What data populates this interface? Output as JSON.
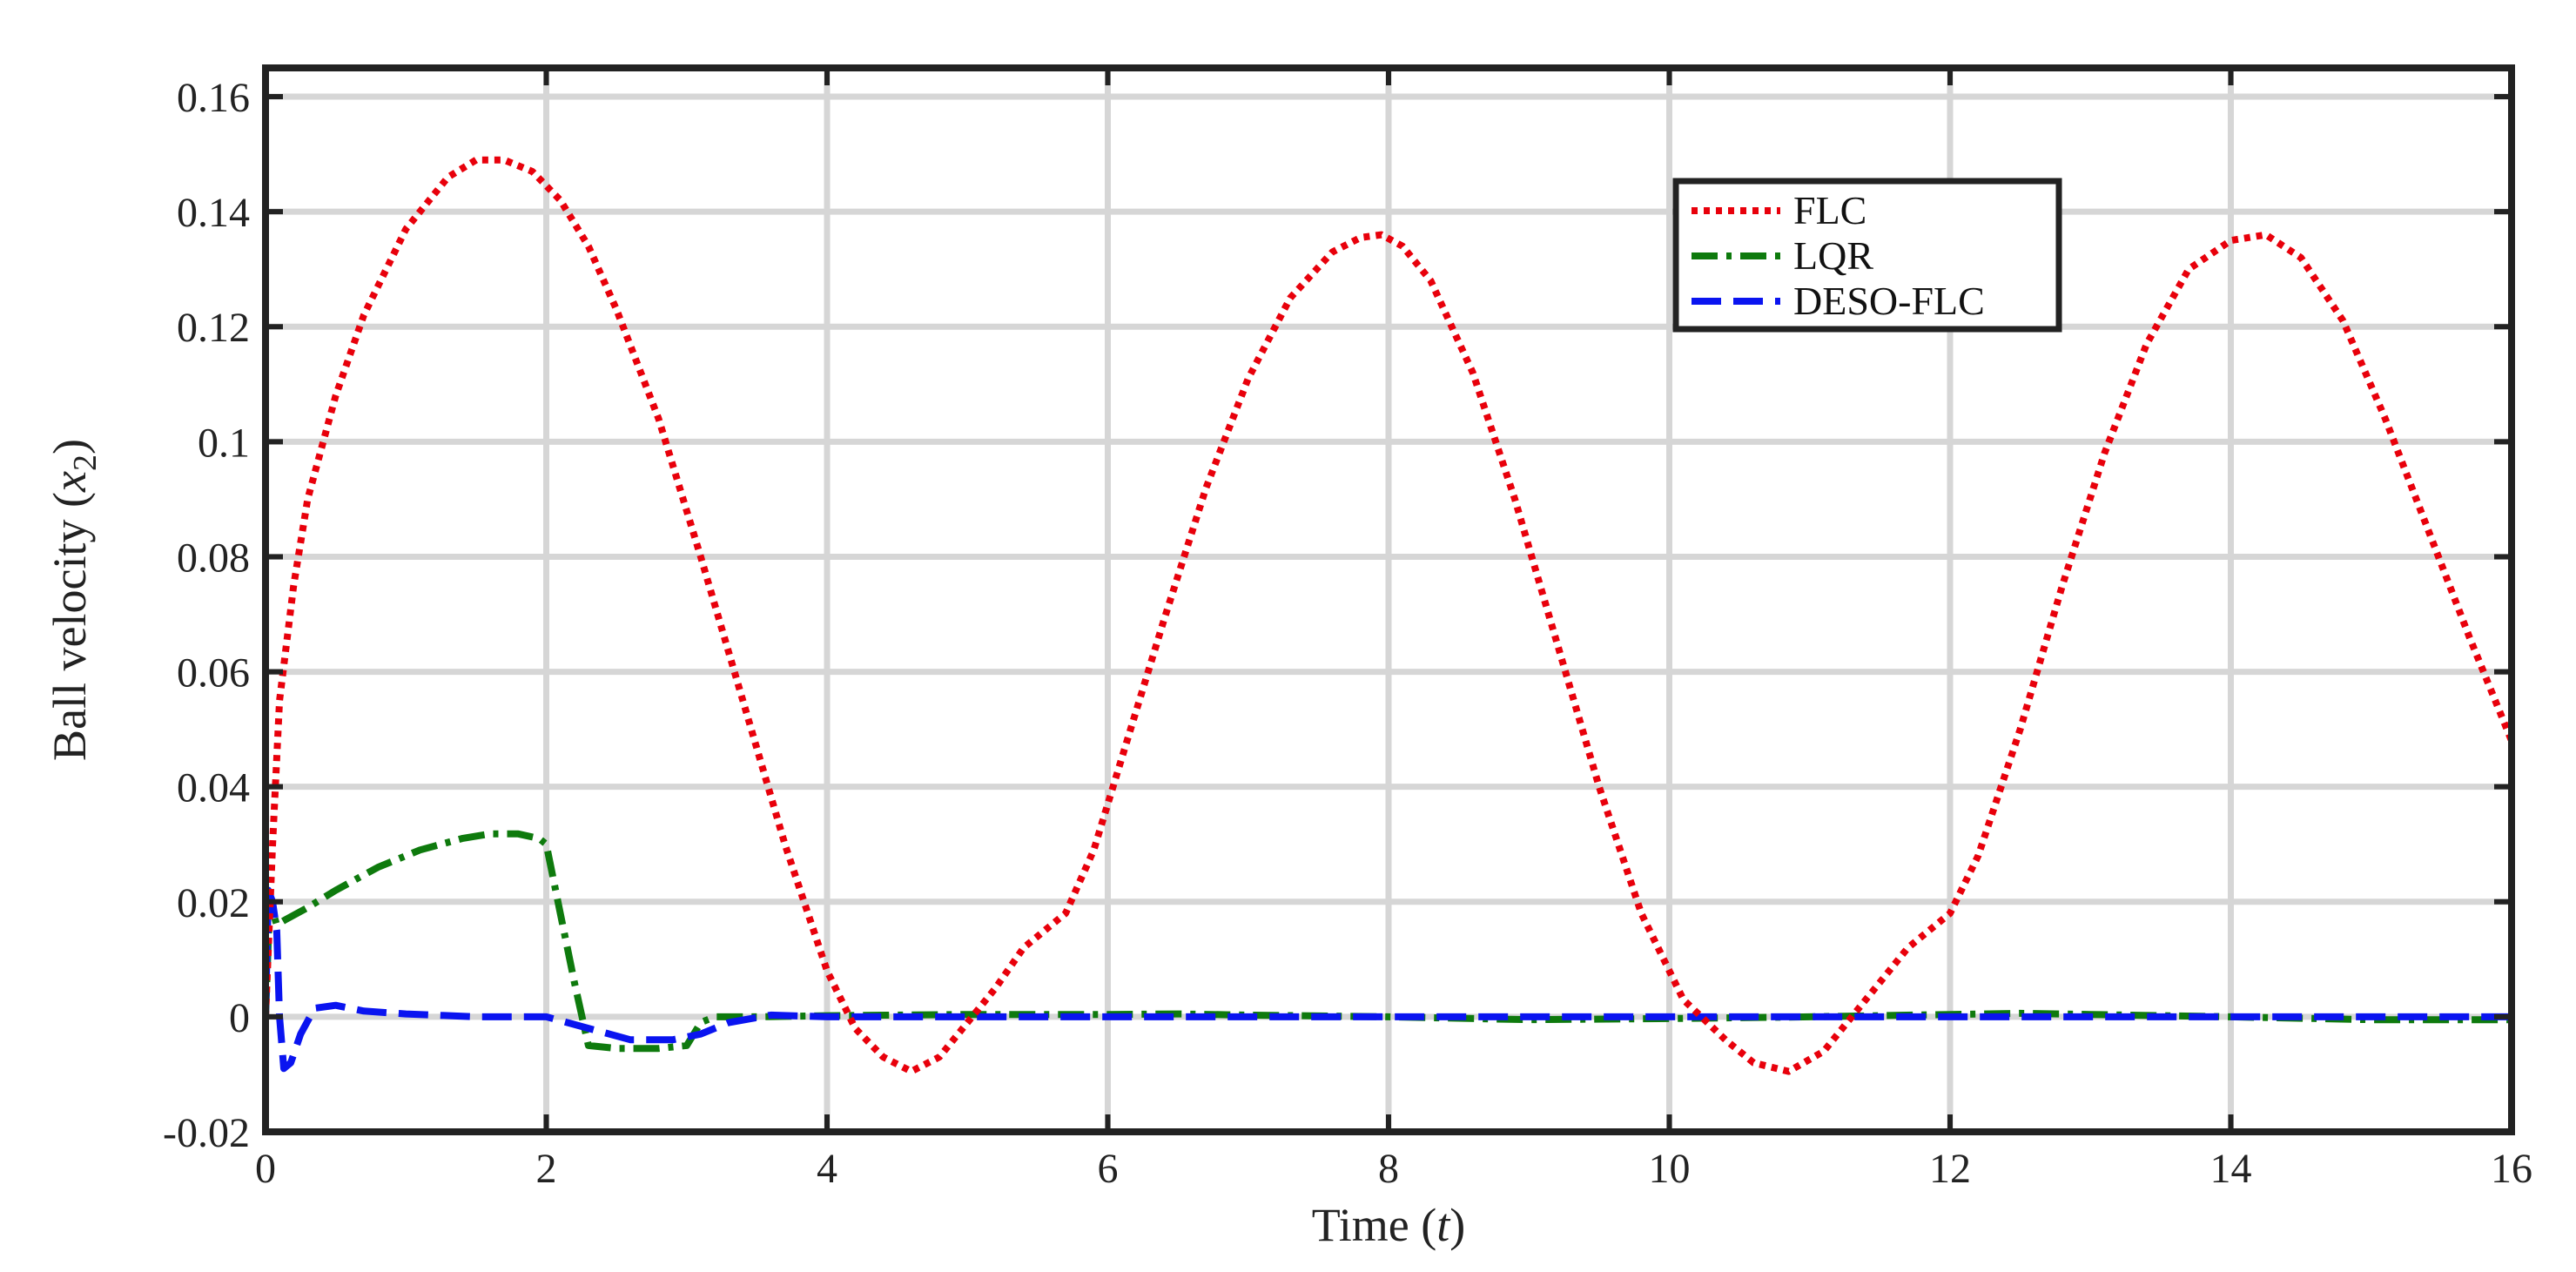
{
  "chart_data": {
    "type": "line",
    "title": "",
    "xlabel": "Time (",
    "xlabel_var": "t",
    "xlabel_close": ")",
    "ylabel": "Ball velocity (",
    "ylabel_var": "x",
    "ylabel_sub": "2",
    "ylabel_close": ")",
    "xlim": [
      0,
      16
    ],
    "ylim": [
      -0.02,
      0.165
    ],
    "xticks": [
      0,
      2,
      4,
      6,
      8,
      10,
      12,
      14,
      16
    ],
    "xtick_labels": [
      "0",
      "2",
      "4",
      "6",
      "8",
      "10",
      "12",
      "14",
      "16"
    ],
    "yticks": [
      -0.02,
      0,
      0.02,
      0.04,
      0.06,
      0.08,
      0.1,
      0.12,
      0.14,
      0.16
    ],
    "ytick_labels": [
      "-0.02",
      "0",
      "0.02",
      "0.04",
      "0.06",
      "0.08",
      "0.1",
      "0.12",
      "0.14",
      "0.16"
    ],
    "grid": true,
    "legend_position": "top-right (inside)",
    "series": [
      {
        "name": "FLC",
        "color": "#e8000b",
        "style": "dotted",
        "x": [
          0,
          0.05,
          0.1,
          0.2,
          0.3,
          0.5,
          0.7,
          1.0,
          1.3,
          1.5,
          1.7,
          1.9,
          2.1,
          2.3,
          2.5,
          2.8,
          3.1,
          3.4,
          3.7,
          4.0,
          4.2,
          4.4,
          4.6,
          4.8,
          5.0,
          5.2,
          5.4,
          5.6,
          5.7,
          5.9,
          6.1,
          6.4,
          6.7,
          7.0,
          7.3,
          7.6,
          7.8,
          7.95,
          8.1,
          8.3,
          8.6,
          8.9,
          9.2,
          9.5,
          9.8,
          10.1,
          10.4,
          10.6,
          10.85,
          11.1,
          11.3,
          11.5,
          11.7,
          11.9,
          12.0,
          12.2,
          12.5,
          12.8,
          13.1,
          13.4,
          13.7,
          14.0,
          14.25,
          14.5,
          14.8,
          15.1,
          15.4,
          15.7,
          16.0
        ],
        "y": [
          0.0,
          0.03,
          0.055,
          0.075,
          0.09,
          0.108,
          0.122,
          0.137,
          0.146,
          0.149,
          0.149,
          0.147,
          0.142,
          0.134,
          0.123,
          0.104,
          0.08,
          0.055,
          0.03,
          0.008,
          -0.002,
          -0.007,
          -0.0095,
          -0.007,
          -0.001,
          0.005,
          0.012,
          0.016,
          0.018,
          0.029,
          0.045,
          0.069,
          0.092,
          0.111,
          0.125,
          0.133,
          0.1355,
          0.136,
          0.134,
          0.128,
          0.112,
          0.09,
          0.065,
          0.04,
          0.018,
          0.003,
          -0.004,
          -0.008,
          -0.0095,
          -0.006,
          0.0,
          0.006,
          0.012,
          0.016,
          0.018,
          0.028,
          0.05,
          0.075,
          0.098,
          0.117,
          0.13,
          0.135,
          0.136,
          0.132,
          0.121,
          0.104,
          0.085,
          0.066,
          0.048
        ]
      },
      {
        "name": "LQR",
        "color": "#0e7a0d",
        "style": "dash-dot",
        "x": [
          0,
          0.03,
          0.08,
          0.15,
          0.3,
          0.5,
          0.8,
          1.1,
          1.4,
          1.6,
          1.8,
          1.95,
          2.0,
          2.1,
          2.2,
          2.3,
          2.5,
          2.8,
          3.0,
          3.1,
          3.2,
          3.5,
          4.0,
          5.0,
          6.0,
          6.5,
          7.0,
          8.0,
          9.0,
          10.0,
          11.0,
          12.0,
          12.5,
          13.0,
          14.0,
          15.0,
          16.0
        ],
        "y": [
          0.0,
          0.02,
          0.016,
          0.017,
          0.019,
          0.022,
          0.026,
          0.029,
          0.031,
          0.0318,
          0.0318,
          0.031,
          0.03,
          0.018,
          0.006,
          -0.005,
          -0.0055,
          -0.0055,
          -0.005,
          -0.001,
          0.0,
          0.0,
          0.0002,
          0.0004,
          0.0004,
          0.0005,
          0.0003,
          0.0,
          -0.0005,
          -0.0003,
          0.0,
          0.0004,
          0.0006,
          0.0004,
          0.0,
          -0.0005,
          -0.0005
        ]
      },
      {
        "name": "DESO-FLC",
        "color": "#0a14f0",
        "style": "dashed",
        "x": [
          0,
          0.02,
          0.05,
          0.08,
          0.1,
          0.13,
          0.18,
          0.25,
          0.35,
          0.5,
          0.7,
          1.0,
          1.5,
          2.0,
          2.3,
          2.6,
          2.9,
          3.1,
          3.3,
          3.6,
          4.0,
          6.0,
          8.0,
          10.0,
          12.0,
          14.0,
          16.0
        ],
        "y": [
          0.0,
          0.022,
          0.02,
          0.015,
          0.0,
          -0.009,
          -0.008,
          -0.003,
          0.0015,
          0.002,
          0.001,
          0.0005,
          0.0,
          0.0,
          -0.002,
          -0.004,
          -0.004,
          -0.003,
          -0.001,
          0.0003,
          0.0,
          0.0,
          0.0,
          0.0,
          0.0,
          0.0,
          0.0
        ]
      }
    ]
  }
}
